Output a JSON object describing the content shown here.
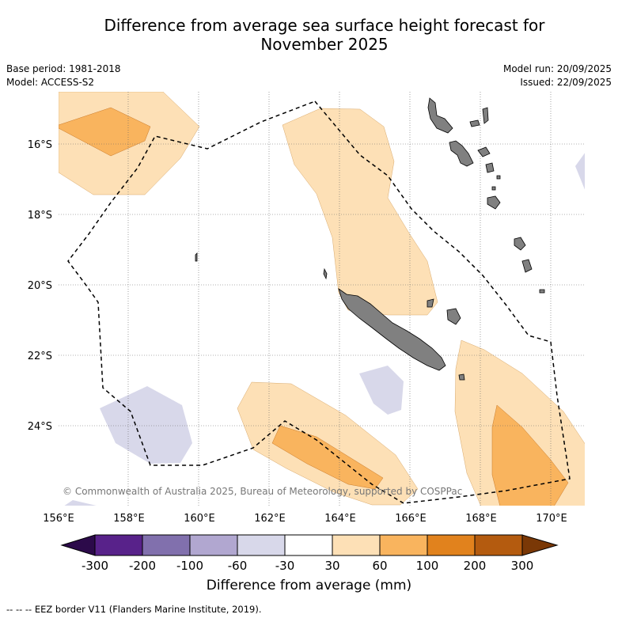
{
  "title_line1": "Difference from average sea surface height forecast for",
  "title_line2": "November 2025",
  "meta": {
    "base_period": "Base period: 1981-2018",
    "model": "Model: ACCESS-S2",
    "model_run": "Model run: 20/09/2025",
    "issued": "Issued: 22/09/2025"
  },
  "map": {
    "lat_labels": [
      "16°S",
      "18°S",
      "20°S",
      "22°S",
      "24°S"
    ],
    "lon_labels": [
      "156°E",
      "158°E",
      "160°E",
      "162°E",
      "164°E",
      "166°E",
      "168°E",
      "170°E"
    ],
    "copyright": "© Commonwealth of Australia 2025, Bureau of Meteorology, supported by COSPPac"
  },
  "colorbar": {
    "colors": [
      "#2c0a4a",
      "#58228a",
      "#8170ad",
      "#b1a7d0",
      "#d8d8ea",
      "#ffffff",
      "#fde0b6",
      "#f9b45e",
      "#e1821d",
      "#b45b0f",
      "#7a3806"
    ],
    "labels": [
      "-300",
      "-200",
      "-100",
      "-60",
      "-30",
      "30",
      "60",
      "100",
      "200",
      "300"
    ],
    "title": "Difference from average (mm)"
  },
  "footnote": "--  --  -- EEZ border V11 (Flanders Marine Institute, 2019)."
}
